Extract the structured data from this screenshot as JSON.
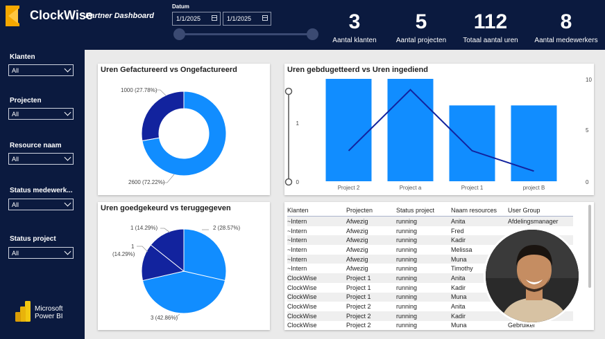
{
  "header": {
    "brand": "ClockWise",
    "subtitle": "Partner Dashboard",
    "date_label": "Datum",
    "date_from": "1/1/2025",
    "date_to": "1/1/2025"
  },
  "kpis": [
    {
      "value": "3",
      "label": "Aantal klanten"
    },
    {
      "value": "5",
      "label": "Aantal projecten"
    },
    {
      "value": "112",
      "label": "Totaal aantal uren"
    },
    {
      "value": "8",
      "label": "Aantal medewerkers"
    }
  ],
  "filters": [
    {
      "label": "Klanten",
      "value": "All"
    },
    {
      "label": "Projecten",
      "value": "All"
    },
    {
      "label": "Resource naam",
      "value": "All"
    },
    {
      "label": "Status medewerk...",
      "value": "All"
    },
    {
      "label": "Status project",
      "value": "All"
    }
  ],
  "powerbi": {
    "line1": "Microsoft",
    "line2": "Power BI"
  },
  "colors": {
    "navy": "#0b1a3f",
    "blue": "#118dff",
    "dark_blue": "#12239e"
  },
  "chart_data": [
    {
      "type": "pie",
      "title": "Uren Gefactureerd vs Ongefactureerd",
      "donut": true,
      "slices": [
        {
          "value": 1000,
          "label": "1000 (27.78%)",
          "color": "#12239e"
        },
        {
          "value": 2600,
          "label": "2600 (72.22%)",
          "color": "#118dff"
        }
      ]
    },
    {
      "type": "bar",
      "title": "Uren gebdugetteerd vs Uren ingediend",
      "categories": [
        "Project 2",
        "Project a",
        "Project 1",
        "project B"
      ],
      "series": [
        {
          "type": "bar",
          "values": [
            1.35,
            1.35,
            1.0,
            1.0
          ]
        },
        {
          "type": "line",
          "values": [
            3,
            9,
            3,
            1
          ]
        }
      ],
      "y_left_ticks": [
        "0",
        "1"
      ],
      "y_right_ticks": [
        "0",
        "5",
        "10"
      ],
      "y_left_range": [
        0,
        1.35
      ],
      "y_right_range": [
        0,
        10
      ]
    },
    {
      "type": "pie",
      "title": "Uren goedgekeurd vs teruggegeven",
      "slices": [
        {
          "value": 2,
          "label": "2 (28.57%)",
          "color": "#118dff"
        },
        {
          "value": 3,
          "label": "3 (42.86%)",
          "color": "#118dff"
        },
        {
          "value": 1,
          "label_line1": "1",
          "label_line2": "(14.29%)",
          "color": "#12239e"
        },
        {
          "value": 1,
          "label": "1 (14.29%)",
          "color": "#12239e"
        }
      ]
    }
  ],
  "table": {
    "columns": [
      "Klanten",
      "Projecten",
      "Status project",
      "Naam resources",
      "User Group"
    ],
    "rows": [
      [
        "~Intern",
        "Afwezig",
        "running",
        "Anita",
        "Afdelingsmanager"
      ],
      [
        "~Intern",
        "Afwezig",
        "running",
        "Fred",
        ""
      ],
      [
        "~Intern",
        "Afwezig",
        "running",
        "Kadir",
        ""
      ],
      [
        "~Intern",
        "Afwezig",
        "running",
        "Melissa",
        ""
      ],
      [
        "~Intern",
        "Afwezig",
        "running",
        "Muna",
        ""
      ],
      [
        "~Intern",
        "Afwezig",
        "running",
        "Timothy",
        ""
      ],
      [
        "ClockWise",
        "Project 1",
        "running",
        "Anita",
        ""
      ],
      [
        "ClockWise",
        "Project 1",
        "running",
        "Kadir",
        ""
      ],
      [
        "ClockWise",
        "Project 1",
        "running",
        "Muna",
        ""
      ],
      [
        "ClockWise",
        "Project 2",
        "running",
        "Anita",
        ""
      ],
      [
        "ClockWise",
        "Project 2",
        "running",
        "Kadir",
        ""
      ],
      [
        "ClockWise",
        "Project 2",
        "running",
        "Muna",
        "Gebruiker"
      ]
    ]
  }
}
